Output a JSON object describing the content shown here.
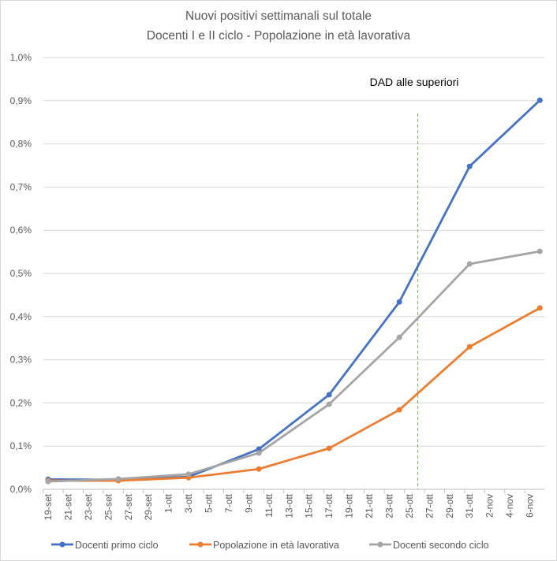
{
  "chart_data": {
    "type": "line",
    "title": [
      "Nuovi positivi settimanali sul totale",
      "Docenti I e II ciclo - Popolazione in età lavorativa"
    ],
    "xlabel": "",
    "ylabel": "",
    "ylim": [
      0,
      1.0
    ],
    "yticks": [
      "0,0%",
      "0,1%",
      "0,2%",
      "0,3%",
      "0,4%",
      "0,5%",
      "0,6%",
      "0,7%",
      "0,8%",
      "0,9%",
      "1,0%"
    ],
    "xtick_labels": [
      "19-set",
      "21-set",
      "23-set",
      "25-set",
      "27-set",
      "29-set",
      "1-ott",
      "3-ott",
      "5-ott",
      "7-ott",
      "9-ott",
      "11-ott",
      "13-ott",
      "15-ott",
      "17-ott",
      "19-ott",
      "21-ott",
      "23-ott",
      "25-ott",
      "27-ott",
      "29-ott",
      "31-ott",
      "2-nov",
      "4-nov",
      "6-nov"
    ],
    "x_days_from_19_set": [
      0,
      7,
      14,
      21,
      28,
      35,
      42,
      49
    ],
    "x": [
      "19-set",
      "26-set",
      "3-ott",
      "10-ott",
      "17-ott",
      "24-ott",
      "31-ott",
      "7-nov"
    ],
    "grid": true,
    "legend_position": "bottom",
    "series": [
      {
        "name": "Docenti primo ciclo",
        "color": "#4472c4",
        "values": [
          0.023,
          0.022,
          0.029,
          0.093,
          0.219,
          0.434,
          0.748,
          0.901
        ]
      },
      {
        "name": "Popolazione in età lavorativa",
        "color": "#ed7d31",
        "values": [
          0.02,
          0.02,
          0.027,
          0.047,
          0.095,
          0.184,
          0.33,
          0.42
        ]
      },
      {
        "name": "Docenti secondo ciclo",
        "color": "#a5a5a5",
        "values": [
          0.018,
          0.024,
          0.035,
          0.084,
          0.197,
          0.352,
          0.522,
          0.551
        ]
      }
    ],
    "annotations": [
      {
        "text": "DAD alle superiori",
        "x_day": 37,
        "color": "#70ad47",
        "style": "dashed-vertical"
      }
    ]
  }
}
